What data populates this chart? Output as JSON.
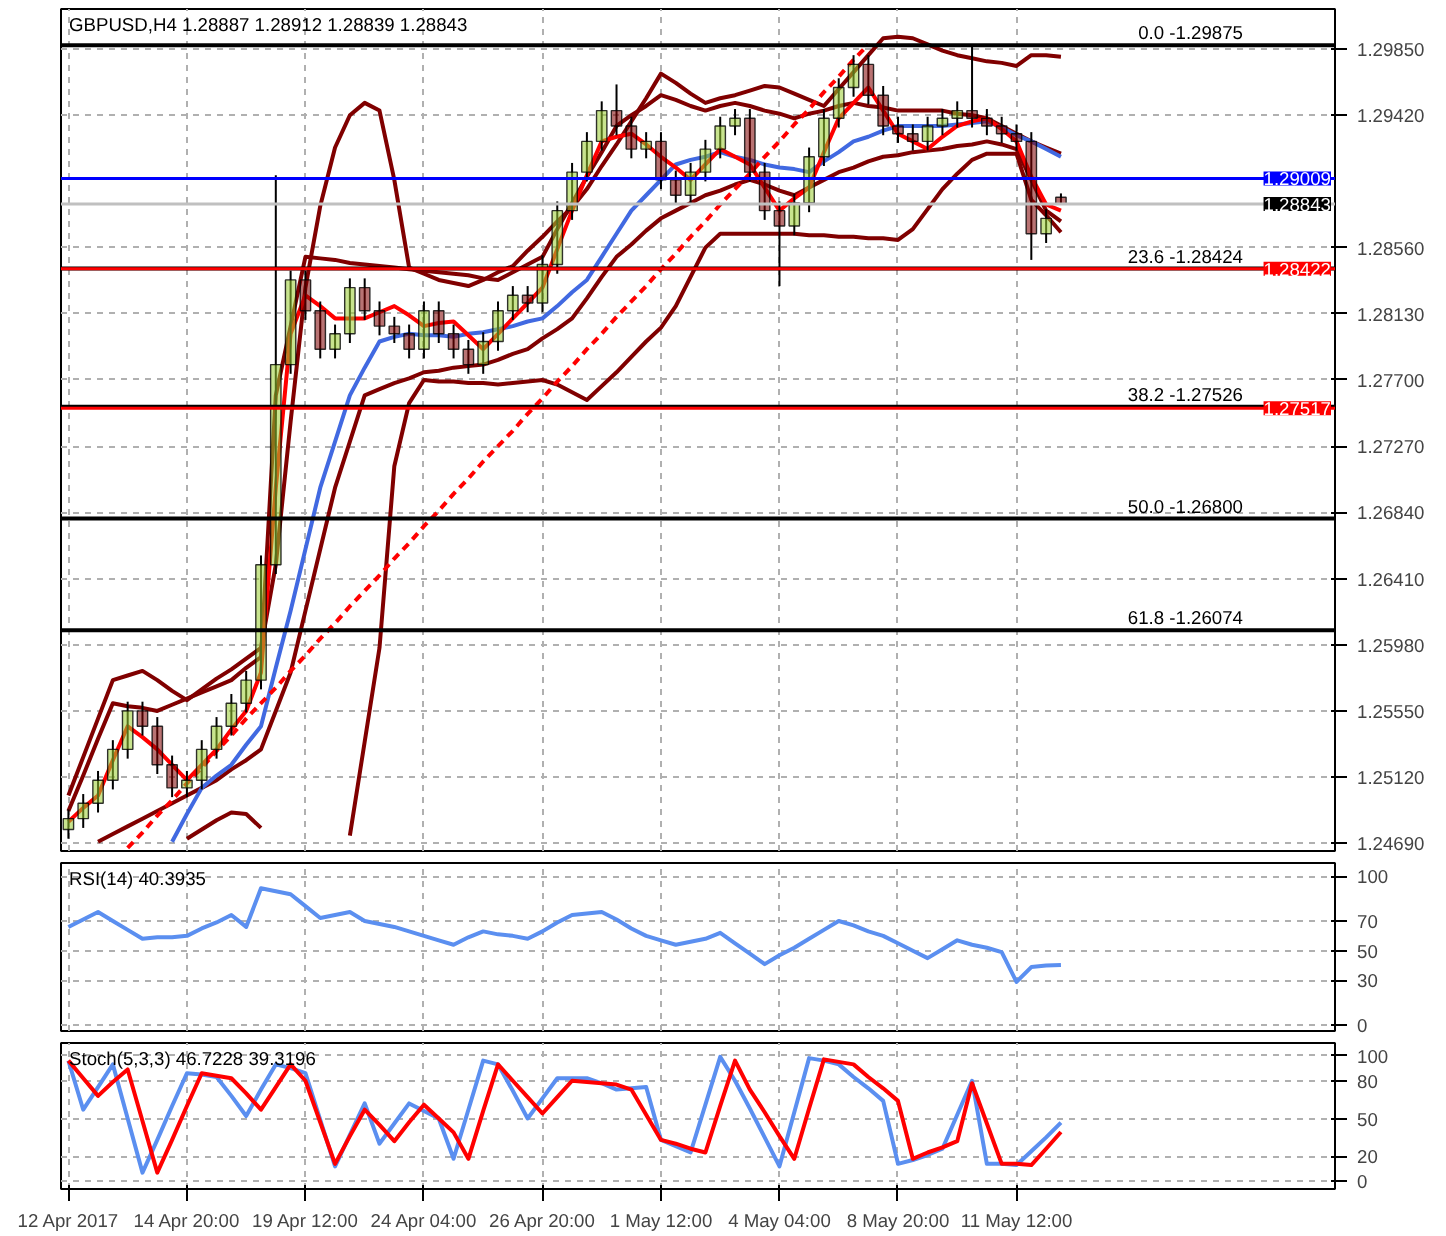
{
  "chart_data": [
    {
      "type": "candlestick",
      "title": "GBPUSD,H4  1.28887 1.28912 1.28839 1.28843",
      "tick_labels": "y",
      "grid": true,
      "categories": [
        null,
        null,
        null,
        null,
        null,
        null,
        null,
        null,
        null,
        null,
        null,
        null,
        null,
        null,
        null,
        null,
        null,
        null,
        null,
        null,
        null,
        null,
        null,
        null,
        null,
        null,
        null,
        null,
        null,
        null,
        null,
        null,
        null,
        null,
        null,
        null,
        null,
        null,
        null,
        null,
        null,
        null,
        null,
        null,
        null,
        null,
        null,
        null,
        null,
        null,
        null,
        null,
        null,
        null,
        null,
        null,
        null,
        null,
        null,
        null,
        null,
        null,
        null,
        null,
        null,
        null,
        null,
        null,
        null,
        null,
        null,
        null,
        null,
        null,
        null,
        null,
        null,
        null,
        null,
        null,
        null,
        null,
        null,
        null,
        null,
        null
      ],
      "ylim": [
        1.2464,
        1.3011
      ],
      "yticks": [
        {
          "value": 1.2985,
          "label": "1.29850"
        },
        {
          "value": 1.2942,
          "label": "1.29420"
        },
        {
          "value": 1.2856,
          "label": "1.28560"
        },
        {
          "value": 1.2813,
          "label": "1.28130"
        },
        {
          "value": 1.277,
          "label": "1.27700"
        },
        {
          "value": 1.2727,
          "label": "1.27270"
        },
        {
          "value": 1.2684,
          "label": "1.26840"
        },
        {
          "value": 1.2641,
          "label": "1.26410"
        },
        {
          "value": 1.2598,
          "label": "1.25980"
        },
        {
          "value": 1.2555,
          "label": "1.25550"
        },
        {
          "value": 1.2512,
          "label": "1.25120"
        },
        {
          "value": 1.2469,
          "label": "1.24690"
        }
      ],
      "colors": [
        "#9acd32",
        "#9acd32",
        "#9acd32",
        "#9acd32",
        "#9acd32",
        "#800000",
        "#800000",
        "#800000",
        "#9acd32",
        "#9acd32",
        "#9acd32",
        "#9acd32",
        "#9acd32",
        "#9acd32",
        "#9acd32",
        "#9acd32",
        "#800000",
        "#800000",
        "#9acd32",
        "#9acd32",
        "#800000",
        "#800000",
        "#800000",
        "#800000",
        "#9acd32",
        "#800000",
        "#800000",
        "#800000",
        "#9acd32",
        "#9acd32",
        "#9acd32",
        "#800000",
        "#9acd32",
        "#9acd32",
        "#9acd32",
        "#9acd32",
        "#9acd32",
        "#800000",
        "#800000",
        "#9acd32",
        "#800000",
        "#800000",
        "#9acd32",
        "#9acd32",
        "#9acd32",
        "#9acd32",
        "#800000",
        "#800000",
        "#800000",
        "#9acd32",
        "#9acd32",
        "#9acd32",
        "#9acd32",
        "#9acd32",
        "#800000",
        "#800000",
        "#800000",
        "#800000",
        "#9acd32",
        "#9acd32",
        "#9acd32",
        "#800000",
        "#800000",
        "#800000",
        "#800000",
        "#800000",
        "#9acd32",
        "#800000",
        null,
        null,
        null,
        null,
        null,
        null,
        null,
        null,
        null,
        null,
        null,
        null,
        null,
        null,
        null,
        null,
        null,
        null
      ],
      "ohlc": [
        [
          1.2478,
          1.2491,
          1.2472,
          1.2485
        ],
        [
          1.2485,
          1.2501,
          1.2479,
          1.2495
        ],
        [
          1.2495,
          1.2516,
          1.2489,
          1.251
        ],
        [
          1.251,
          1.2536,
          1.2504,
          1.253
        ],
        [
          1.253,
          1.2561,
          1.2524,
          1.2555
        ],
        [
          1.2555,
          1.2561,
          1.2539,
          1.2545
        ],
        [
          1.2545,
          1.2551,
          1.2514,
          1.252
        ],
        [
          1.252,
          1.2526,
          1.2499,
          1.2505
        ],
        [
          1.2505,
          1.2516,
          1.2499,
          1.251
        ],
        [
          1.251,
          1.2536,
          1.2504,
          1.253
        ],
        [
          1.253,
          1.2551,
          1.2524,
          1.2545
        ],
        [
          1.2545,
          1.2566,
          1.2539,
          1.256
        ],
        [
          1.256,
          1.2581,
          1.2554,
          1.2575
        ],
        [
          1.2575,
          1.2656,
          1.2569,
          1.265
        ],
        [
          1.265,
          1.2903,
          1.2644,
          1.278
        ],
        [
          1.278,
          1.2841,
          1.2774,
          1.2835
        ],
        [
          1.2835,
          1.2841,
          1.2809,
          1.2815
        ],
        [
          1.2815,
          1.2821,
          1.2784,
          1.279
        ],
        [
          1.279,
          1.2806,
          1.2784,
          1.28
        ],
        [
          1.28,
          1.2836,
          1.2794,
          1.283
        ],
        [
          1.283,
          1.2836,
          1.2809,
          1.2815
        ],
        [
          1.2815,
          1.2821,
          1.2799,
          1.2805
        ],
        [
          1.2805,
          1.2811,
          1.2794,
          1.28
        ],
        [
          1.28,
          1.2806,
          1.2784,
          1.279
        ],
        [
          1.279,
          1.2821,
          1.2784,
          1.2815
        ],
        [
          1.2815,
          1.2821,
          1.2794,
          1.28
        ],
        [
          1.28,
          1.2806,
          1.2784,
          1.279
        ],
        [
          1.279,
          1.2796,
          1.2774,
          1.278
        ],
        [
          1.278,
          1.2801,
          1.2774,
          1.2795
        ],
        [
          1.2795,
          1.2821,
          1.2789,
          1.2815
        ],
        [
          1.2815,
          1.2831,
          1.2809,
          1.2825
        ],
        [
          1.2825,
          1.2831,
          1.2814,
          1.282
        ],
        [
          1.282,
          1.2851,
          1.2814,
          1.2845
        ],
        [
          1.2845,
          1.2886,
          1.2839,
          1.288
        ],
        [
          1.288,
          1.2911,
          1.2874,
          1.2905
        ],
        [
          1.2905,
          1.2931,
          1.2899,
          1.2925
        ],
        [
          1.2925,
          1.2951,
          1.2919,
          1.2945
        ],
        [
          1.2945,
          1.2962,
          1.2929,
          1.2935
        ],
        [
          1.2935,
          1.2941,
          1.2914,
          1.292
        ],
        [
          1.292,
          1.2931,
          1.2914,
          1.2925
        ],
        [
          1.2925,
          1.2931,
          1.2894,
          1.29
        ],
        [
          1.29,
          1.2906,
          1.2884,
          1.289
        ],
        [
          1.289,
          1.2911,
          1.2884,
          1.2905
        ],
        [
          1.2905,
          1.2926,
          1.2899,
          1.292
        ],
        [
          1.292,
          1.2941,
          1.2914,
          1.2935
        ],
        [
          1.2935,
          1.2946,
          1.2929,
          1.294
        ],
        [
          1.294,
          1.2946,
          1.2899,
          1.2905
        ],
        [
          1.2905,
          1.2911,
          1.2874,
          1.288
        ],
        [
          1.288,
          1.2886,
          1.2831,
          1.287
        ],
        [
          1.287,
          1.2891,
          1.2864,
          1.2885
        ],
        [
          1.2885,
          1.2921,
          1.2879,
          1.2915
        ],
        [
          1.2915,
          1.2946,
          1.2909,
          1.294
        ],
        [
          1.294,
          1.2966,
          1.2934,
          1.296
        ],
        [
          1.296,
          1.2981,
          1.2954,
          1.2975
        ],
        [
          1.2975,
          1.2981,
          1.2949,
          1.2955
        ],
        [
          1.2955,
          1.2961,
          1.2929,
          1.2935
        ],
        [
          1.2935,
          1.2941,
          1.2924,
          1.293
        ],
        [
          1.293,
          1.2936,
          1.2919,
          1.2925
        ],
        [
          1.2925,
          1.2941,
          1.2919,
          1.2935
        ],
        [
          1.2935,
          1.2946,
          1.2929,
          1.294
        ],
        [
          1.294,
          1.2951,
          1.2934,
          1.2945
        ],
        [
          1.2945,
          1.2988,
          1.2934,
          1.294
        ],
        [
          1.294,
          1.2946,
          1.2929,
          1.2935
        ],
        [
          1.2935,
          1.2941,
          1.2924,
          1.293
        ],
        [
          1.293,
          1.2936,
          1.2919,
          1.2925
        ],
        [
          1.2925,
          1.2931,
          1.2848,
          1.2865
        ],
        [
          1.2865,
          1.2881,
          1.2859,
          1.2875
        ],
        [
          1.28887,
          1.28912,
          1.28839,
          1.28843
        ],
        null,
        null,
        null,
        null,
        null,
        null,
        null,
        null,
        null,
        null,
        null,
        null,
        null,
        null,
        null,
        null,
        null,
        null
      ],
      "series": [
        {
          "type": "line",
          "color": "#800000",
          "values": [
            1.25,
            1.2525,
            1.255,
            1.2575,
            1.2578,
            1.2581,
            1.2575,
            1.2568,
            1.2562,
            1.2569,
            1.2576,
            1.2582,
            1.2589,
            1.2596,
            1.265,
            1.2743,
            1.283,
            1.2883,
            1.2921,
            1.2942,
            1.295,
            1.2945,
            1.29,
            1.2843,
            1.2839,
            1.2835,
            1.2833,
            1.2831,
            1.2835,
            1.284,
            1.2844,
            1.2854,
            1.2863,
            1.2873,
            1.2882,
            1.2894,
            1.2909,
            1.2923,
            1.2938,
            1.2953,
            1.2969,
            1.2963,
            1.2956,
            1.295,
            1.2953,
            1.2955,
            1.2958,
            1.2961,
            1.296,
            1.2956,
            1.2952,
            1.2948,
            1.2959,
            1.297,
            1.2981,
            1.2992,
            1.2993,
            1.2992,
            1.2988,
            1.2984,
            1.2981,
            1.2979,
            1.2977,
            1.2976,
            1.2974,
            1.2981,
            1.2981,
            1.298,
            null,
            null,
            null,
            null,
            null,
            null,
            null,
            null,
            null,
            null,
            null,
            null,
            null,
            null,
            null,
            null,
            null,
            null
          ]
        },
        {
          "type": "line",
          "color": "#800000",
          "values": [
            null,
            null,
            null,
            null,
            null,
            null,
            null,
            null,
            1.2472,
            1.2478,
            1.2484,
            1.2489,
            1.2488,
            1.2479,
            null,
            null,
            null,
            null,
            null,
            1.2474,
            1.2535,
            1.2596,
            1.2714,
            1.2755,
            1.277,
            1.2769,
            1.2769,
            1.2768,
            1.2768,
            1.2767,
            1.2768,
            1.2769,
            1.277,
            1.2767,
            1.2762,
            1.2757,
            1.2766,
            1.2775,
            1.2785,
            1.2795,
            1.2804,
            1.2818,
            1.2837,
            1.2856,
            1.2865,
            1.2865,
            1.2865,
            1.2865,
            1.2865,
            1.2865,
            1.2864,
            1.2864,
            1.2863,
            1.2863,
            1.2862,
            1.2862,
            1.2861,
            1.2868,
            1.2881,
            1.2894,
            1.2904,
            1.2913,
            1.2917,
            1.2917,
            1.2917,
            1.2887,
            1.2877,
            1.2866,
            null,
            null,
            null,
            null,
            null,
            null,
            null,
            null,
            null,
            null,
            null,
            null,
            null,
            null,
            null,
            null,
            null,
            null
          ]
        },
        {
          "type": "line",
          "color": "#800000",
          "values": [
            1.249,
            1.2513,
            1.2537,
            1.256,
            1.2558,
            1.2557,
            1.2555,
            1.2559,
            1.2563,
            1.2567,
            1.2571,
            1.2575,
            1.2583,
            1.259,
            1.276,
            1.2805,
            1.285,
            1.2849,
            1.2848,
            1.2846,
            1.2845,
            1.2844,
            1.2843,
            1.2842,
            1.2841,
            1.284,
            1.2839,
            1.2838,
            1.2836,
            1.2835,
            1.284,
            1.2845,
            1.285,
            1.2868,
            1.2885,
            1.2902,
            1.2918,
            1.2935,
            1.2942,
            1.2948,
            1.2955,
            1.2952,
            1.2948,
            1.2945,
            1.2948,
            1.295,
            1.2948,
            1.2945,
            1.2943,
            1.294,
            1.2943,
            1.2945,
            1.2948,
            1.295,
            1.2948,
            1.2947,
            1.2945,
            1.2945,
            1.2945,
            1.2945,
            1.2943,
            1.2942,
            1.294,
            1.2935,
            1.293,
            1.2925,
            1.2921,
            1.2917,
            null,
            null,
            null,
            null,
            null,
            null,
            null,
            null,
            null,
            null,
            null,
            null,
            null,
            null,
            null,
            null,
            null,
            null
          ]
        },
        {
          "type": "line",
          "color": "#800000",
          "values": [
            null,
            null,
            1.247,
            1.2475,
            1.248,
            1.2485,
            1.249,
            1.2495,
            1.25,
            1.2505,
            1.251,
            1.2517,
            1.2523,
            1.253,
            1.2555,
            1.258,
            1.262,
            1.266,
            1.27,
            1.273,
            1.276,
            1.2764,
            1.2768,
            1.2771,
            1.2775,
            1.2776,
            1.2778,
            1.2779,
            1.278,
            1.2783,
            1.2787,
            1.279,
            1.2797,
            1.2803,
            1.281,
            1.2823,
            1.2837,
            1.285,
            1.2858,
            1.2867,
            1.2875,
            1.288,
            1.2885,
            1.289,
            1.2893,
            1.2897,
            1.29,
            1.2897,
            1.2893,
            1.289,
            1.2895,
            1.29,
            1.2905,
            1.2908,
            1.2912,
            1.2915,
            1.2916,
            1.2918,
            1.2919,
            1.292,
            1.2922,
            1.2923,
            1.2925,
            1.2923,
            1.292,
            1.29,
            1.288,
            1.2873,
            null,
            null,
            null,
            null,
            null,
            null,
            null,
            null,
            null,
            null,
            null,
            null,
            null,
            null,
            null,
            null,
            null,
            null
          ]
        },
        {
          "type": "line",
          "color": "#4169e1",
          "values": [
            null,
            null,
            null,
            null,
            null,
            null,
            null,
            1.247,
            1.2488,
            1.2505,
            1.2513,
            1.252,
            1.2533,
            1.2545,
            1.2583,
            1.262,
            1.266,
            1.27,
            1.273,
            1.276,
            1.2778,
            1.2795,
            1.2798,
            1.28,
            1.2799,
            1.2799,
            1.2798,
            1.28,
            1.2801,
            1.2803,
            1.2805,
            1.2808,
            1.281,
            1.2818,
            1.2827,
            1.2835,
            1.285,
            1.2865,
            1.288,
            1.289,
            1.29,
            1.291,
            1.2913,
            1.2915,
            1.2918,
            1.2915,
            1.2913,
            1.291,
            1.2908,
            1.2907,
            1.2905,
            1.2912,
            1.2918,
            1.2925,
            1.2928,
            1.2932,
            1.2935,
            1.2935,
            1.2935,
            1.2935,
            1.2936,
            1.2937,
            1.2938,
            1.2934,
            1.2929,
            1.2925,
            1.292,
            1.2915,
            null,
            null,
            null,
            null,
            null,
            null,
            null,
            null,
            null,
            null,
            null,
            null,
            null,
            null,
            null,
            null,
            null,
            null
          ]
        },
        {
          "type": "line",
          "color": "#ff0000",
          "values": [
            1.2483,
            1.2492,
            1.25,
            1.2523,
            1.2545,
            1.2538,
            1.253,
            1.252,
            1.251,
            1.252,
            1.253,
            1.2543,
            1.2555,
            1.258,
            1.27,
            1.28,
            1.2825,
            1.2818,
            1.281,
            1.281,
            1.281,
            1.2814,
            1.2818,
            1.2812,
            1.2805,
            1.2807,
            1.2808,
            1.2799,
            1.279,
            1.28,
            1.281,
            1.282,
            1.283,
            1.2855,
            1.288,
            1.2903,
            1.2925,
            1.2928,
            1.293,
            1.2923,
            1.2915,
            1.2908,
            1.29,
            1.291,
            1.292,
            1.2915,
            1.291,
            1.2895,
            1.288,
            1.2888,
            1.2895,
            1.2918,
            1.294,
            1.295,
            1.296,
            1.2945,
            1.293,
            1.2925,
            1.292,
            1.2928,
            1.2935,
            1.2938,
            1.294,
            1.2933,
            1.2925,
            1.2902,
            1.2884,
            1.288,
            null,
            null,
            null,
            null,
            null,
            null,
            null,
            null,
            null,
            null,
            null,
            null,
            null,
            null,
            null,
            null,
            null,
            null
          ]
        },
        {
          "type": "line",
          "color": "#ff0000",
          "line_style": "dashed",
          "values": [
            null,
            null,
            null,
            null,
            1.2466,
            1.2476,
            1.2487,
            1.2497,
            1.2508,
            1.2518,
            1.2529,
            1.2539,
            1.255,
            1.256,
            1.257,
            1.2581,
            1.2591,
            1.2602,
            1.2612,
            1.2623,
            1.2633,
            1.2643,
            1.2654,
            1.2664,
            1.2675,
            1.2685,
            1.2696,
            1.2706,
            1.2717,
            1.2727,
            1.2737,
            1.2748,
            1.2758,
            1.2769,
            1.2779,
            1.279,
            1.28,
            1.2811,
            1.2821,
            1.2831,
            1.2842,
            1.2852,
            1.2863,
            1.2873,
            1.2884,
            1.2894,
            1.2904,
            1.2915,
            1.2925,
            1.2936,
            1.2946,
            1.2957,
            1.2967,
            1.2978,
            1.2988,
            null,
            null,
            null,
            null,
            null,
            null,
            null,
            null,
            null,
            null,
            null,
            null,
            null,
            null,
            null,
            null,
            null,
            null,
            null,
            null,
            null,
            null,
            null,
            null,
            null,
            null,
            null,
            null,
            null,
            null,
            null
          ]
        }
      ],
      "ref_lines": [
        {
          "axis": "y",
          "value": 1.29875,
          "color": "#000000"
        },
        {
          "axis": "y",
          "value": 1.28424,
          "color": "#000000"
        },
        {
          "axis": "y",
          "value": 1.27526,
          "color": "#000000"
        },
        {
          "axis": "y",
          "value": 1.268,
          "color": "#000000"
        },
        {
          "axis": "y",
          "value": 1.26074,
          "color": "#000000"
        },
        {
          "axis": "y",
          "value": 1.29009,
          "label": "1.29009",
          "color": "#0000ff"
        },
        {
          "axis": "y",
          "value": 1.28843,
          "label": "1.28843",
          "color": "#c0c0c0"
        },
        {
          "axis": "y",
          "value": 1.28422,
          "label": "1.28422",
          "color": "#ff0000"
        },
        {
          "axis": "y",
          "value": 1.27517,
          "label": "1.27517",
          "color": "#ff0000"
        }
      ],
      "annotations": [
        "0.0 -1.29875",
        "23.6 -1.28424",
        "38.2 -1.27526",
        "50.0 -1.26800",
        "61.8 -1.26074"
      ]
    },
    {
      "type": "line",
      "title": "RSI(14) 40.3935",
      "tick_labels": "y",
      "grid": true,
      "categories": [
        null,
        null,
        null,
        null,
        null,
        null,
        null,
        null,
        null,
        null,
        null,
        null,
        null,
        null,
        null,
        null,
        null,
        null,
        null,
        null,
        null,
        null,
        null,
        null,
        null,
        null,
        null,
        null,
        null,
        null,
        null,
        null,
        null,
        null,
        null,
        null,
        null,
        null,
        null,
        null,
        null,
        null,
        null,
        null,
        null,
        null,
        null,
        null,
        null,
        null,
        null,
        null,
        null,
        null,
        null,
        null,
        null,
        null,
        null,
        null,
        null,
        null,
        null,
        null,
        null,
        null,
        null,
        null,
        null,
        null,
        null,
        null,
        null,
        null,
        null,
        null,
        null,
        null,
        null,
        null,
        null,
        null,
        null,
        null,
        null,
        null
      ],
      "ylim": [
        -4,
        109
      ],
      "yticks": [
        0,
        30,
        50,
        70,
        100
      ],
      "series": [
        {
          "color": "#5b8ff0",
          "values": [
            66,
            71,
            76,
            70,
            64,
            58,
            59,
            59,
            60,
            65,
            69,
            74,
            66,
            92,
            90,
            88,
            80,
            72,
            74,
            76,
            70,
            68,
            66,
            63,
            60,
            57,
            54,
            59,
            63,
            61,
            60,
            58,
            63,
            69,
            74,
            75,
            76,
            71,
            65,
            60,
            57,
            54,
            56,
            58,
            62,
            55,
            48,
            41,
            47,
            52,
            58,
            64,
            70,
            67,
            63,
            60,
            55,
            50,
            45,
            51,
            57,
            54,
            52,
            49,
            29,
            39,
            40,
            40.3935,
            null,
            null,
            null,
            null,
            null,
            null,
            null,
            null,
            null,
            null,
            null,
            null,
            null,
            null,
            null,
            null,
            null,
            null
          ]
        }
      ]
    },
    {
      "type": "line",
      "title": "Stoch(5,3,3) 46.7228 39.3196",
      "grid": true,
      "categories": [
        "12 Apr 2017",
        null,
        null,
        null,
        null,
        null,
        null,
        null,
        "14 Apr 20:00",
        null,
        null,
        null,
        null,
        null,
        null,
        null,
        "19 Apr 12:00",
        null,
        null,
        null,
        null,
        null,
        null,
        null,
        "24 Apr 04:00",
        null,
        null,
        null,
        null,
        null,
        null,
        null,
        "26 Apr 20:00",
        null,
        null,
        null,
        null,
        null,
        null,
        null,
        "1 May 12:00",
        null,
        null,
        null,
        null,
        null,
        null,
        null,
        "4 May 04:00",
        null,
        null,
        null,
        null,
        null,
        null,
        null,
        "8 May 20:00",
        null,
        null,
        null,
        null,
        null,
        null,
        null,
        "11 May 12:00",
        null,
        null,
        null,
        null,
        null,
        null,
        null,
        null,
        null,
        null,
        null,
        null,
        null,
        null,
        null,
        null,
        null,
        null,
        null,
        null,
        null
      ],
      "ylim": [
        -6,
        110
      ],
      "yticks": [
        0,
        20,
        50,
        80,
        100
      ],
      "series": [
        {
          "color": "#5b8ff0",
          "values": [
            96,
            57,
            75,
            93,
            50,
            7,
            33,
            60,
            86,
            85,
            83,
            68,
            52,
            73,
            93,
            90,
            86,
            49,
            12,
            37,
            62,
            30,
            46,
            62,
            56,
            50,
            18,
            57,
            96,
            93,
            72,
            50,
            66,
            82,
            82,
            82,
            78,
            73,
            74,
            75,
            33,
            28,
            23,
            61,
            99,
            80,
            58,
            35,
            12,
            55,
            98,
            96,
            93,
            83,
            74,
            64,
            14,
            17,
            21,
            26,
            53,
            80,
            14,
            14,
            13,
            24,
            35,
            46.7228,
            null,
            null,
            null,
            null,
            null,
            null,
            null,
            null,
            null,
            null,
            null,
            null,
            null,
            null,
            null,
            null,
            null,
            null
          ]
        },
        {
          "color": "#ff0000",
          "values": [
            96,
            82,
            68,
            79,
            89,
            48,
            7,
            33,
            60,
            86,
            84,
            82,
            70,
            57,
            75,
            93,
            80,
            47,
            14,
            36,
            57,
            45,
            32,
            47,
            61,
            50,
            39,
            18,
            56,
            93,
            80,
            67,
            54,
            67,
            80,
            79,
            78,
            77,
            73,
            53,
            33,
            30,
            26,
            23,
            60,
            96,
            73,
            55,
            36,
            18,
            58,
            97,
            95,
            93,
            83,
            74,
            64,
            18,
            23,
            27,
            32,
            78,
            46,
            14,
            14,
            13,
            26,
            39.3196,
            null,
            null,
            null,
            null,
            null,
            null,
            null,
            null,
            null,
            null,
            null,
            null,
            null,
            null,
            null,
            null,
            null,
            null
          ]
        }
      ]
    }
  ]
}
